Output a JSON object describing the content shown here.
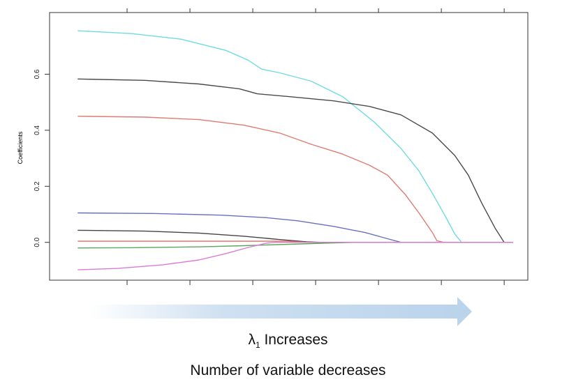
{
  "chart_data": {
    "type": "line",
    "title": "",
    "xlabel": "",
    "ylabel": "Coefficients",
    "ylim": [
      -0.135,
      0.82
    ],
    "xlim": [
      0,
      10
    ],
    "y_ticks": [
      "0.0",
      "0.2",
      "0.4",
      "0.6"
    ],
    "y_tick_values": [
      0.0,
      0.2,
      0.4,
      0.6
    ],
    "x_tick_count": 7,
    "x_tick_values": [
      1.4,
      2.8,
      4.2,
      5.6,
      7.0,
      8.4,
      9.8
    ],
    "series": [
      {
        "color": "#6fdbe3",
        "points": [
          [
            0.3,
            0.755
          ],
          [
            1.5,
            0.745
          ],
          [
            2.6,
            0.725
          ],
          [
            3.6,
            0.685
          ],
          [
            4.1,
            0.65
          ],
          [
            4.4,
            0.618
          ],
          [
            4.8,
            0.605
          ],
          [
            5.5,
            0.575
          ],
          [
            6.2,
            0.52
          ],
          [
            6.9,
            0.43
          ],
          [
            7.5,
            0.335
          ],
          [
            7.9,
            0.255
          ],
          [
            8.2,
            0.175
          ],
          [
            8.5,
            0.09
          ],
          [
            8.7,
            0.03
          ],
          [
            8.85,
            0.0
          ],
          [
            9.2,
            0.0
          ],
          [
            9.5,
            0.0
          ]
        ]
      },
      {
        "color": "#4a4a4a",
        "points": [
          [
            0.3,
            0.583
          ],
          [
            1.8,
            0.578
          ],
          [
            3.0,
            0.565
          ],
          [
            3.9,
            0.548
          ],
          [
            4.3,
            0.53
          ],
          [
            5.0,
            0.52
          ],
          [
            6.0,
            0.505
          ],
          [
            6.8,
            0.485
          ],
          [
            7.5,
            0.455
          ],
          [
            8.2,
            0.39
          ],
          [
            8.7,
            0.31
          ],
          [
            9.0,
            0.24
          ],
          [
            9.3,
            0.14
          ],
          [
            9.6,
            0.05
          ],
          [
            9.8,
            0.0
          ],
          [
            10.0,
            0.0
          ]
        ]
      },
      {
        "color": "#e07b72",
        "points": [
          [
            0.3,
            0.45
          ],
          [
            1.8,
            0.447
          ],
          [
            3.0,
            0.438
          ],
          [
            4.0,
            0.418
          ],
          [
            4.8,
            0.39
          ],
          [
            5.5,
            0.35
          ],
          [
            6.2,
            0.315
          ],
          [
            6.8,
            0.275
          ],
          [
            7.2,
            0.24
          ],
          [
            7.6,
            0.17
          ],
          [
            7.9,
            0.105
          ],
          [
            8.2,
            0.035
          ],
          [
            8.3,
            0.006
          ],
          [
            8.45,
            0.0
          ],
          [
            10.0,
            0.0
          ]
        ]
      },
      {
        "color": "#6670c4",
        "points": [
          [
            0.3,
            0.105
          ],
          [
            2.0,
            0.103
          ],
          [
            3.5,
            0.097
          ],
          [
            4.5,
            0.088
          ],
          [
            5.2,
            0.077
          ],
          [
            6.0,
            0.057
          ],
          [
            6.7,
            0.035
          ],
          [
            7.2,
            0.013
          ],
          [
            7.5,
            0.0
          ],
          [
            10.0,
            0.0
          ]
        ]
      },
      {
        "color": "#444444",
        "points": [
          [
            0.3,
            0.043
          ],
          [
            1.8,
            0.04
          ],
          [
            3.0,
            0.033
          ],
          [
            4.0,
            0.022
          ],
          [
            4.8,
            0.01
          ],
          [
            5.4,
            0.002
          ],
          [
            5.7,
            0.0
          ],
          [
            10.0,
            0.0
          ]
        ]
      },
      {
        "color": "#e06a5e",
        "points": [
          [
            0.3,
            0.004
          ],
          [
            5.0,
            0.004
          ],
          [
            5.4,
            0.0
          ],
          [
            10.0,
            0.0
          ]
        ]
      },
      {
        "color": "#5aa85a",
        "points": [
          [
            0.3,
            -0.02
          ],
          [
            1.5,
            -0.019
          ],
          [
            3.0,
            -0.016
          ],
          [
            4.0,
            -0.012
          ],
          [
            5.0,
            -0.007
          ],
          [
            6.0,
            -0.002
          ],
          [
            6.5,
            0.0
          ],
          [
            10.0,
            0.0
          ]
        ]
      },
      {
        "color": "#d97bd6",
        "points": [
          [
            0.3,
            -0.098
          ],
          [
            1.2,
            -0.093
          ],
          [
            2.2,
            -0.08
          ],
          [
            3.0,
            -0.063
          ],
          [
            3.6,
            -0.04
          ],
          [
            4.1,
            -0.018
          ],
          [
            4.5,
            -0.003
          ],
          [
            4.7,
            0.0
          ],
          [
            10.0,
            0.0
          ]
        ]
      }
    ]
  },
  "arrow": {
    "color": "#b9d3ec"
  },
  "captions": {
    "lambda_symbol": "λ",
    "lambda_subscript": "1",
    "lambda_text": " Increases",
    "variable_text": "Number of variable decreases"
  }
}
